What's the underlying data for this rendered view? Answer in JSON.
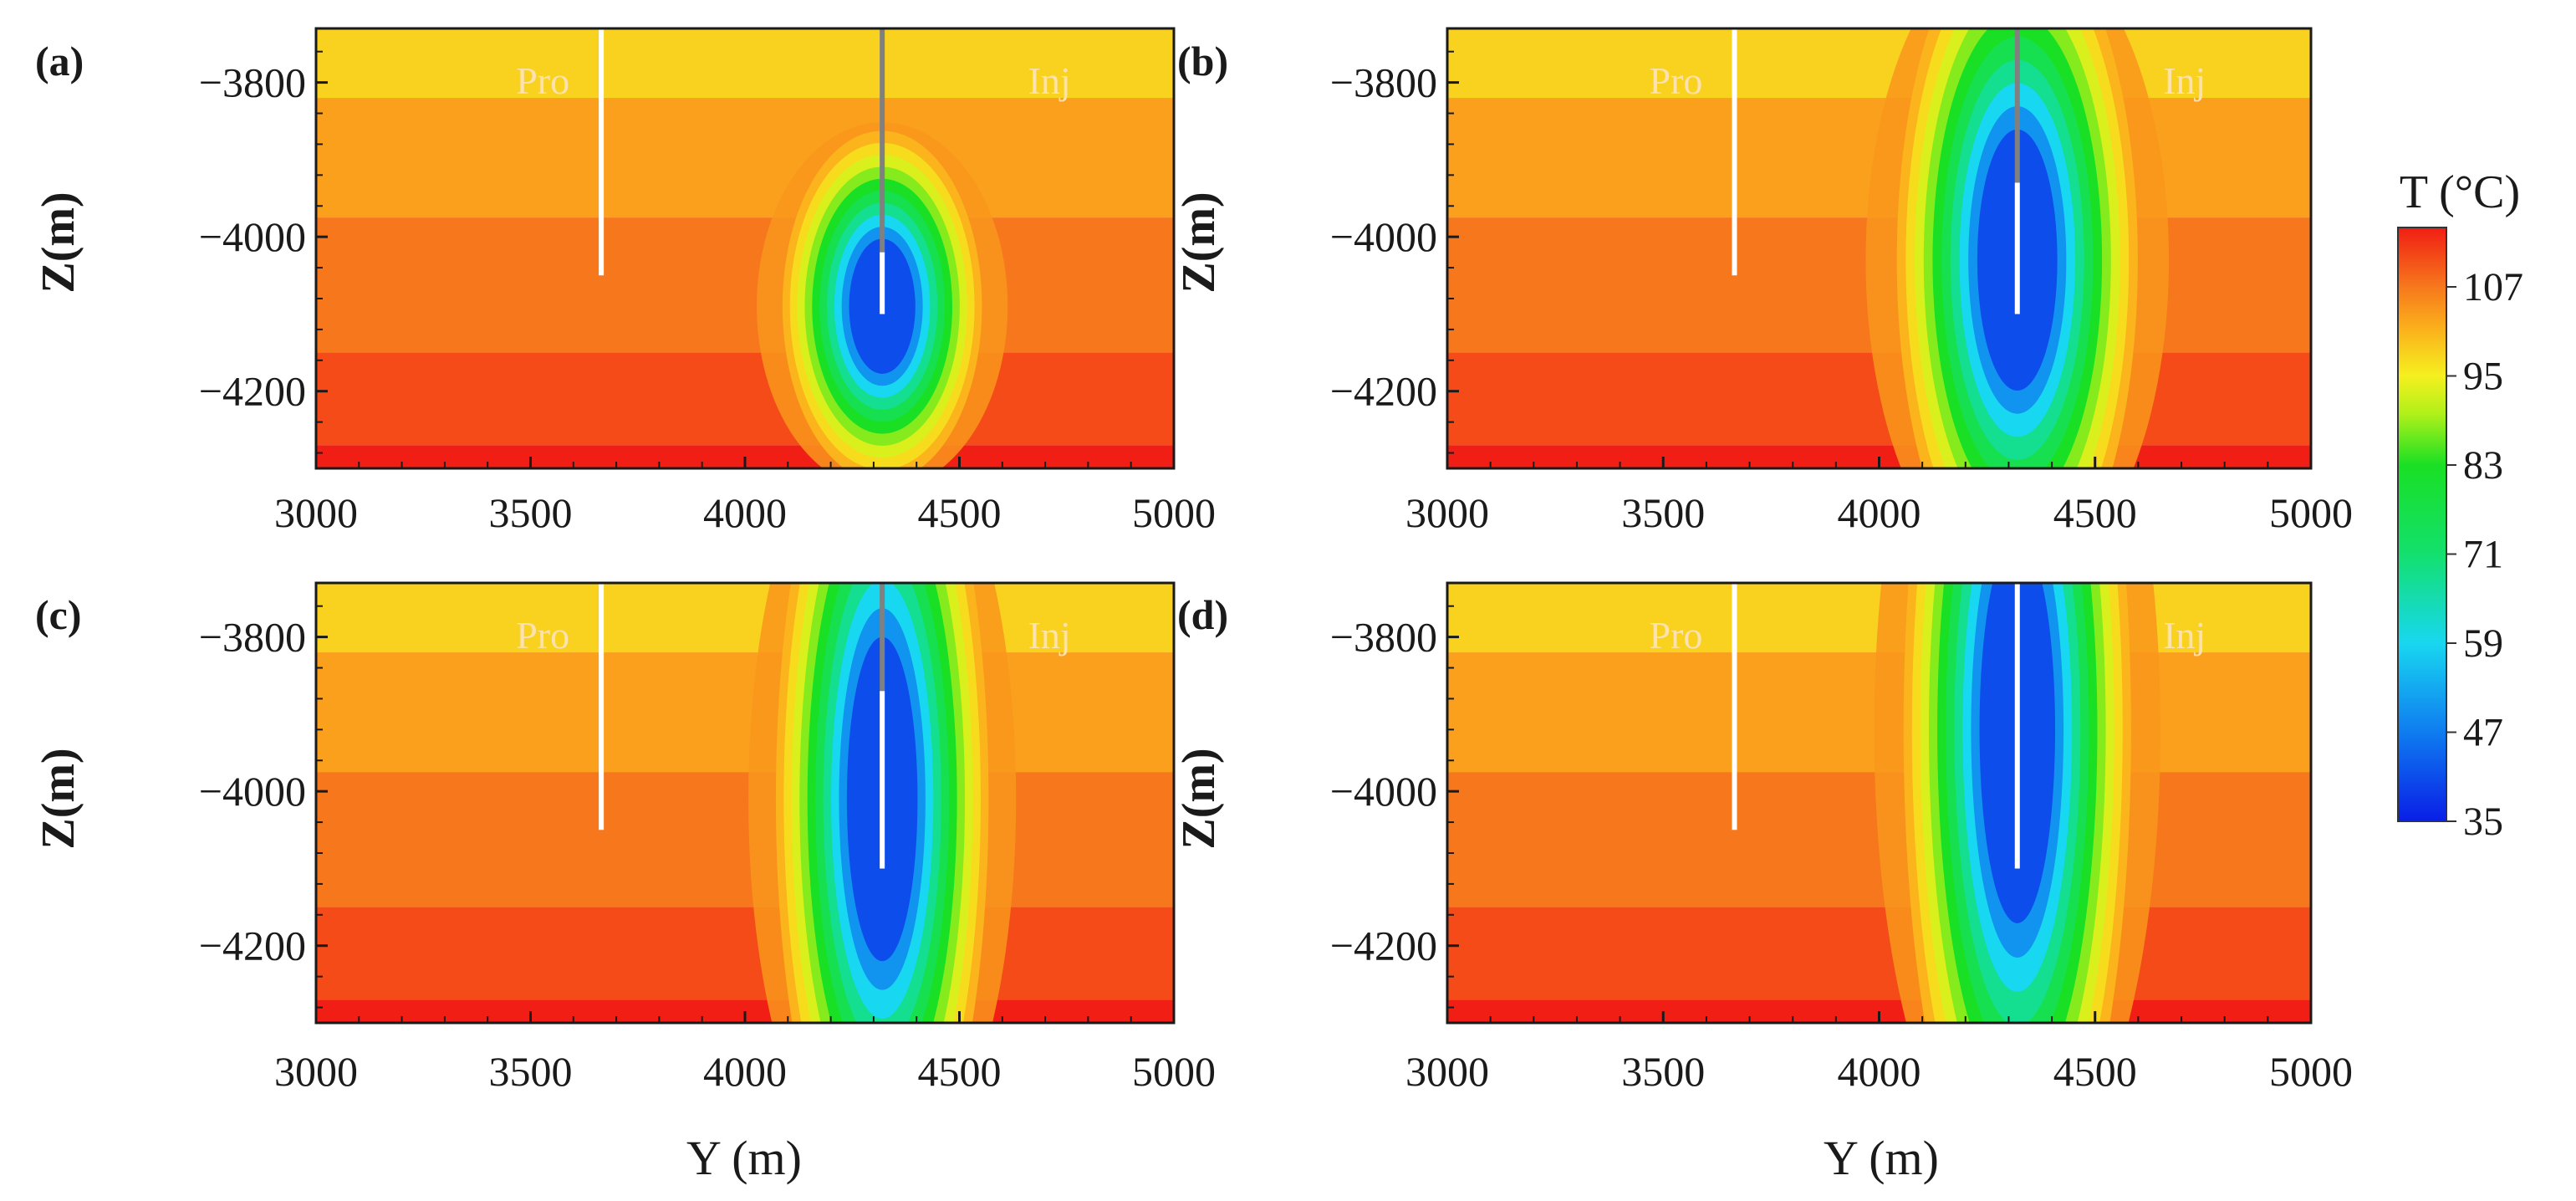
{
  "chart_data": {
    "type": "heatmap",
    "title": "",
    "panels": [
      {
        "id": "a",
        "label": "(a)",
        "plume": {
          "center_y_m": 4320,
          "center_z_m": -4090,
          "half_width_m": 150,
          "half_height_m": 150
        },
        "injector_open_top_m": -4020
      },
      {
        "id": "b",
        "label": "(b)",
        "plume": {
          "center_y_m": 4320,
          "center_z_m": -4030,
          "half_width_m": 180,
          "half_height_m": 290
        },
        "injector_open_top_m": -3930
      },
      {
        "id": "c",
        "label": "(c)",
        "plume": {
          "center_y_m": 4320,
          "center_z_m": -4010,
          "half_width_m": 160,
          "half_height_m": 360
        },
        "injector_open_top_m": -3870
      },
      {
        "id": "d",
        "label": "(d)",
        "plume": {
          "center_y_m": 4320,
          "center_z_m": -3920,
          "half_width_m": 170,
          "half_height_m": 430
        },
        "injector_open_top_m": -3730
      }
    ],
    "wells": {
      "producer": {
        "label": "Pro",
        "y_m": 3665,
        "z_top_m": -3730,
        "z_bottom_m": -4050
      },
      "injector": {
        "label": "Inj",
        "y_m": 4320,
        "z_top_m": -3730,
        "z_bottom_m": -4100
      }
    },
    "xlabel": "Y (m)",
    "ylabel": "Z(m)",
    "xlim": [
      3000,
      5000
    ],
    "ylim": [
      -4300,
      -3730
    ],
    "x_ticks": [
      3000,
      3500,
      4000,
      4500,
      5000
    ],
    "y_ticks": [
      -3800,
      -4000,
      -4200
    ],
    "x_tick_labels": [
      "3000",
      "3500",
      "4000",
      "4500",
      "5000"
    ],
    "y_tick_labels": [
      "−3800",
      "−4000",
      "−4200"
    ],
    "background_layers": [
      {
        "z_top_m": -3730,
        "z_bottom_m": -3820,
        "temperature_c": 98
      },
      {
        "z_top_m": -3820,
        "z_bottom_m": -3975,
        "temperature_c": 103
      },
      {
        "z_top_m": -3975,
        "z_bottom_m": -4150,
        "temperature_c": 107
      },
      {
        "z_top_m": -4150,
        "z_bottom_m": -4270,
        "temperature_c": 111
      },
      {
        "z_top_m": -4270,
        "z_bottom_m": -4300,
        "temperature_c": 115
      }
    ],
    "colorbar": {
      "title": "T (°C)",
      "min": 35,
      "max": 115,
      "ticks": [
        107,
        95,
        83,
        71,
        59,
        47,
        35
      ],
      "tick_labels": [
        "107",
        "95",
        "83",
        "71",
        "59",
        "47",
        "35"
      ],
      "stops": [
        {
          "t": 35,
          "color": "#0a1ee6"
        },
        {
          "t": 47,
          "color": "#0f7cf0"
        },
        {
          "t": 59,
          "color": "#18d7f0"
        },
        {
          "t": 71,
          "color": "#13e06e"
        },
        {
          "t": 83,
          "color": "#19e024"
        },
        {
          "t": 90,
          "color": "#b2f019"
        },
        {
          "t": 95,
          "color": "#f5f01f"
        },
        {
          "t": 101,
          "color": "#fbb41c"
        },
        {
          "t": 107,
          "color": "#f7781c"
        },
        {
          "t": 115,
          "color": "#f01e14"
        }
      ]
    }
  },
  "colors": {
    "well_white": "#ffffff",
    "well_gray": "#808080",
    "axis": "#1a1a1a"
  }
}
